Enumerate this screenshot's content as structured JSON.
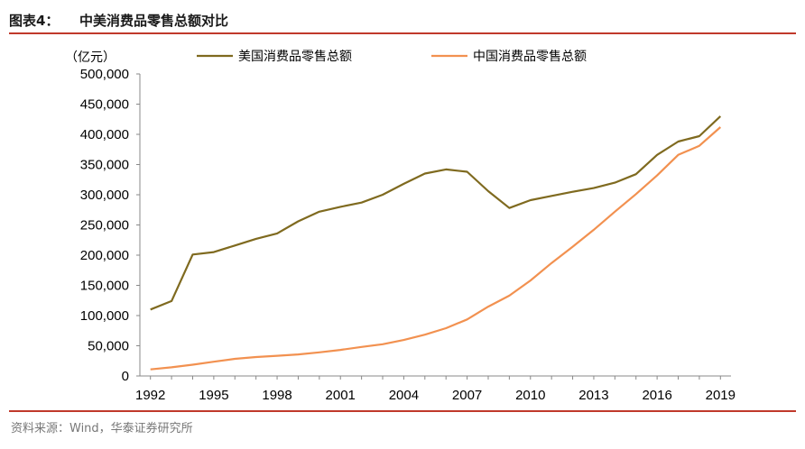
{
  "header": {
    "figure_label": "图表4：",
    "title": "中美消费品零售总额对比"
  },
  "source": "资料来源：Wind，华泰证券研究所",
  "colors": {
    "us_series": "#7f6a1f",
    "cn_series": "#f29150",
    "rule": "#c0392b"
  },
  "chart_data": {
    "type": "line",
    "ylabel": "（亿元）",
    "ylim": [
      0,
      500000
    ],
    "yticks": [
      0,
      50000,
      100000,
      150000,
      200000,
      250000,
      300000,
      350000,
      400000,
      450000,
      500000
    ],
    "ytick_labels": [
      "0",
      "50,000",
      "100,000",
      "150,000",
      "200,000",
      "250,000",
      "300,000",
      "350,000",
      "400,000",
      "450,000",
      "500,000"
    ],
    "xticks": [
      1992,
      1995,
      1998,
      2001,
      2004,
      2007,
      2010,
      2013,
      2016,
      2019
    ],
    "legend_position": "top",
    "x": [
      1992,
      1993,
      1994,
      1995,
      1996,
      1997,
      1998,
      1999,
      2000,
      2001,
      2002,
      2003,
      2004,
      2005,
      2006,
      2007,
      2008,
      2009,
      2010,
      2011,
      2012,
      2013,
      2014,
      2015,
      2016,
      2017,
      2018,
      2019
    ],
    "series": [
      {
        "name": "美国消费品零售总额",
        "values": [
          110000,
          124000,
          201000,
          205000,
          216000,
          227000,
          236000,
          256000,
          272000,
          280000,
          287000,
          300000,
          318000,
          335000,
          342000,
          338000,
          306000,
          278000,
          291000,
          298000,
          305000,
          311000,
          320000,
          334000,
          366000,
          388000,
          397000,
          430000
        ]
      },
      {
        "name": "中国消费品零售总额",
        "values": [
          10900,
          14300,
          18600,
          23600,
          28400,
          31300,
          33400,
          35600,
          39100,
          43100,
          48100,
          52500,
          59500,
          68400,
          79100,
          93600,
          114800,
          133000,
          158000,
          187000,
          214000,
          242000,
          272000,
          301000,
          332000,
          366000,
          381000,
          412000
        ]
      }
    ]
  }
}
